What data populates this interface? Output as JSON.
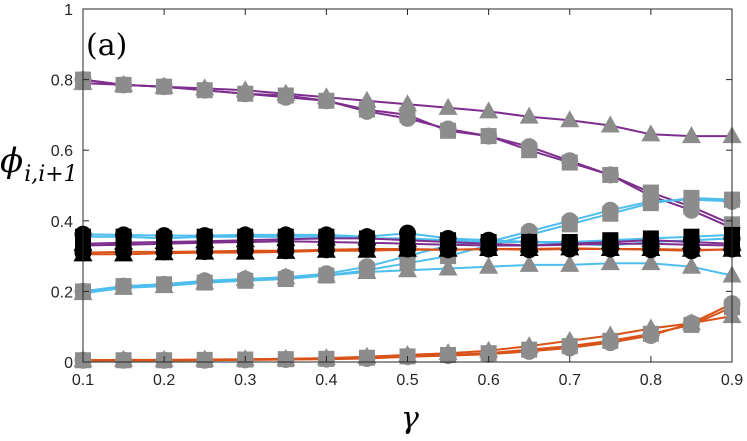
{
  "chart_data": {
    "type": "line",
    "panel_label": "(a)",
    "xlabel": "γ",
    "ylabel": {
      "base": "ϕ",
      "subscript": "i,i+1"
    },
    "xlim": [
      0.1,
      0.9
    ],
    "ylim": [
      0,
      1
    ],
    "xticks": [
      "0.1",
      "0.2",
      "0.3",
      "0.4",
      "0.5",
      "0.6",
      "0.7",
      "0.8",
      "0.9"
    ],
    "yticks": [
      "0",
      "0.2",
      "0.4",
      "0.6",
      "0.8",
      "1"
    ],
    "grid": false,
    "x": [
      0.1,
      0.15,
      0.2,
      0.25,
      0.3,
      0.35,
      0.4,
      0.45,
      0.5,
      0.55,
      0.6,
      0.65,
      0.7,
      0.75,
      0.8,
      0.85,
      0.9
    ],
    "series": [
      {
        "color": "#7E2F8E",
        "marker": "triangle",
        "markerColor": "#8c8c8c",
        "values": [
          0.79,
          0.785,
          0.78,
          0.775,
          0.77,
          0.76,
          0.75,
          0.74,
          0.73,
          0.72,
          0.71,
          0.695,
          0.685,
          0.67,
          0.645,
          0.64,
          0.64
        ]
      },
      {
        "color": "#7E2F8E",
        "marker": "circle",
        "markerColor": "#8c8c8c",
        "values": [
          0.8,
          0.785,
          0.78,
          0.77,
          0.76,
          0.75,
          0.74,
          0.71,
          0.69,
          0.66,
          0.64,
          0.61,
          0.57,
          0.53,
          0.47,
          0.43,
          0.38
        ]
      },
      {
        "color": "#7E2F8E",
        "marker": "square",
        "markerColor": "#8c8c8c",
        "values": [
          0.8,
          0.785,
          0.78,
          0.77,
          0.76,
          0.755,
          0.74,
          0.715,
          0.7,
          0.655,
          0.64,
          0.6,
          0.565,
          0.53,
          0.48,
          0.44,
          0.39
        ]
      },
      {
        "color": "#4DBEEE",
        "marker": "circle",
        "markerColor": "#8c8c8c",
        "values": [
          0.2,
          0.215,
          0.22,
          0.23,
          0.235,
          0.24,
          0.25,
          0.27,
          0.3,
          0.33,
          0.34,
          0.37,
          0.4,
          0.43,
          0.455,
          0.46,
          0.455
        ]
      },
      {
        "color": "#4DBEEE",
        "marker": "square",
        "markerColor": "#8c8c8c",
        "values": [
          0.2,
          0.215,
          0.22,
          0.225,
          0.23,
          0.235,
          0.245,
          0.26,
          0.28,
          0.3,
          0.33,
          0.36,
          0.39,
          0.42,
          0.45,
          0.465,
          0.46
        ]
      },
      {
        "color": "#4DBEEE",
        "marker": "triangle",
        "markerColor": "#8c8c8c",
        "values": [
          0.195,
          0.21,
          0.215,
          0.225,
          0.235,
          0.24,
          0.245,
          0.255,
          0.26,
          0.265,
          0.27,
          0.275,
          0.275,
          0.28,
          0.28,
          0.27,
          0.245
        ]
      },
      {
        "color": "#D95319",
        "marker": "circle",
        "markerColor": "#8c8c8c",
        "values": [
          0.005,
          0.005,
          0.005,
          0.005,
          0.006,
          0.007,
          0.008,
          0.01,
          0.015,
          0.018,
          0.022,
          0.03,
          0.04,
          0.055,
          0.075,
          0.11,
          0.165
        ]
      },
      {
        "color": "#D95319",
        "marker": "square",
        "markerColor": "#8c8c8c",
        "values": [
          0.005,
          0.005,
          0.005,
          0.006,
          0.007,
          0.008,
          0.009,
          0.012,
          0.016,
          0.02,
          0.025,
          0.035,
          0.045,
          0.06,
          0.08,
          0.105,
          0.155
        ]
      },
      {
        "color": "#D95319",
        "marker": "triangle",
        "markerColor": "#8c8c8c",
        "values": [
          0.005,
          0.006,
          0.006,
          0.007,
          0.008,
          0.009,
          0.011,
          0.015,
          0.02,
          0.025,
          0.032,
          0.045,
          0.06,
          0.075,
          0.095,
          0.11,
          0.13
        ]
      },
      {
        "color": "#4DBEEE",
        "marker": "circle",
        "markerColor": "#000000",
        "values": [
          0.362,
          0.36,
          0.358,
          0.358,
          0.36,
          0.36,
          0.36,
          0.355,
          0.365,
          0.35,
          0.345,
          0.34,
          0.335,
          0.33,
          0.34,
          0.345,
          0.35
        ]
      },
      {
        "color": "#4DBEEE",
        "marker": "square",
        "markerColor": "#000000",
        "values": [
          0.355,
          0.355,
          0.35,
          0.355,
          0.355,
          0.355,
          0.355,
          0.35,
          0.35,
          0.345,
          0.34,
          0.34,
          0.34,
          0.345,
          0.35,
          0.355,
          0.36
        ]
      },
      {
        "color": "#7E2F8E",
        "marker": "triangle",
        "markerColor": "#000000",
        "values": [
          0.335,
          0.338,
          0.34,
          0.342,
          0.345,
          0.348,
          0.35,
          0.35,
          0.345,
          0.34,
          0.335,
          0.33,
          0.335,
          0.34,
          0.345,
          0.34,
          0.335
        ]
      },
      {
        "color": "#7E2F8E",
        "marker": "square",
        "markerColor": "#000000",
        "values": [
          0.33,
          0.332,
          0.335,
          0.338,
          0.34,
          0.342,
          0.34,
          0.338,
          0.335,
          0.332,
          0.33,
          0.33,
          0.332,
          0.335,
          0.335,
          0.332,
          0.33
        ]
      },
      {
        "color": "#D95319",
        "marker": "circle",
        "markerColor": "#000000",
        "values": [
          0.31,
          0.312,
          0.312,
          0.313,
          0.315,
          0.315,
          0.318,
          0.32,
          0.32,
          0.318,
          0.32,
          0.318,
          0.32,
          0.32,
          0.318,
          0.315,
          0.32
        ]
      },
      {
        "color": "#D95319",
        "marker": "triangle",
        "markerColor": "#000000",
        "values": [
          0.305,
          0.305,
          0.308,
          0.31,
          0.31,
          0.312,
          0.315,
          0.315,
          0.318,
          0.318,
          0.32,
          0.32,
          0.322,
          0.32,
          0.32,
          0.318,
          0.318
        ]
      }
    ]
  }
}
